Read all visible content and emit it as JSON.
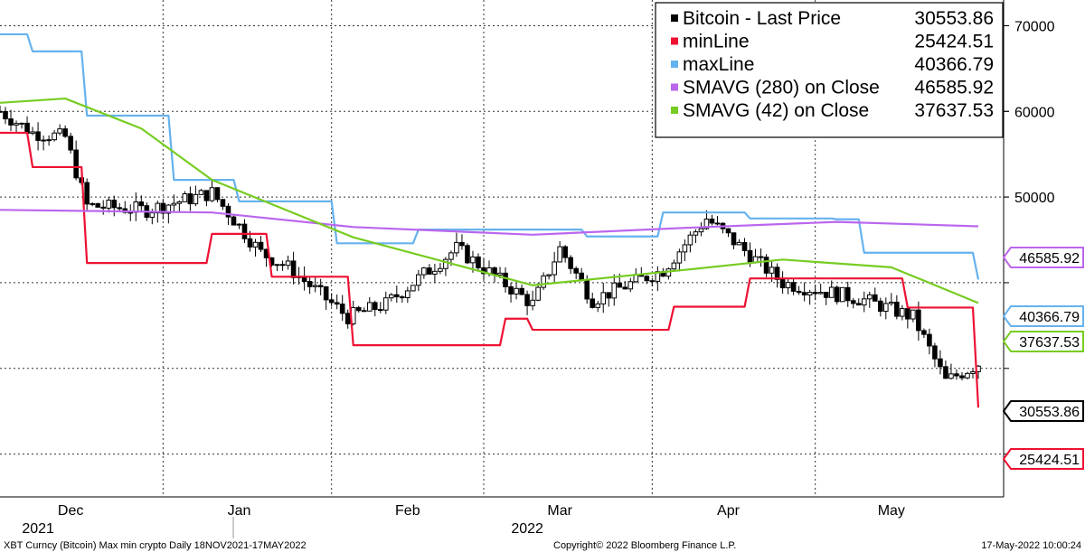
{
  "chart_data": {
    "type": "line",
    "ylim": [
      15000,
      73000
    ],
    "y_ticks": [
      70000,
      60000,
      50000
    ],
    "y_tick_labels": [
      "70000",
      "60000",
      "50000"
    ],
    "grid": true,
    "legend_placement": "top-right",
    "x_months": [
      {
        "label": "Dec",
        "date": "2021-12-01"
      },
      {
        "label": "Jan",
        "date": "2022-01-01"
      },
      {
        "label": "Feb",
        "date": "2022-02-01"
      },
      {
        "label": "Mar",
        "date": "2022-03-01"
      },
      {
        "label": "Apr",
        "date": "2022-04-01"
      },
      {
        "label": "May",
        "date": "2022-05-01"
      }
    ],
    "x_years": [
      {
        "label": "2021",
        "date": "2021-12-01"
      },
      {
        "label": "2022",
        "date": "2022-03-01"
      }
    ],
    "x_range": [
      "2021-11-18",
      "2022-05-17"
    ],
    "series": [
      {
        "name": "Bitcoin - Last Price",
        "color": "#000000",
        "type": "candlestick",
        "last": "30553.86",
        "key_points": [
          {
            "date": "2021-11-18",
            "value": 60000
          },
          {
            "date": "2021-11-24",
            "value": 57500
          },
          {
            "date": "2021-11-30",
            "value": 57000
          },
          {
            "date": "2021-12-04",
            "value": 49000
          },
          {
            "date": "2021-12-15",
            "value": 48500
          },
          {
            "date": "2021-12-27",
            "value": 50500
          },
          {
            "date": "2022-01-05",
            "value": 43500
          },
          {
            "date": "2022-01-10",
            "value": 41800
          },
          {
            "date": "2022-01-21",
            "value": 36000
          },
          {
            "date": "2022-01-28",
            "value": 37500
          },
          {
            "date": "2022-02-10",
            "value": 44000
          },
          {
            "date": "2022-02-24",
            "value": 37500
          },
          {
            "date": "2022-03-01",
            "value": 44000
          },
          {
            "date": "2022-03-07",
            "value": 38000
          },
          {
            "date": "2022-03-20",
            "value": 41500
          },
          {
            "date": "2022-03-28",
            "value": 47500
          },
          {
            "date": "2022-04-11",
            "value": 40000
          },
          {
            "date": "2022-04-26",
            "value": 38000
          },
          {
            "date": "2022-05-05",
            "value": 36000
          },
          {
            "date": "2022-05-11",
            "value": 28500
          },
          {
            "date": "2022-05-17",
            "value": 30553.86
          }
        ]
      },
      {
        "name": "minLine",
        "color": "#ee1133",
        "last": "25424.51",
        "points": [
          {
            "date": "2021-11-18",
            "value": 57500
          },
          {
            "date": "2021-11-24",
            "value": 53500
          },
          {
            "date": "2021-12-04",
            "value": 42300
          },
          {
            "date": "2021-12-27",
            "value": 45700
          },
          {
            "date": "2022-01-07",
            "value": 40700
          },
          {
            "date": "2022-01-22",
            "value": 32700
          },
          {
            "date": "2022-02-19",
            "value": 35800
          },
          {
            "date": "2022-02-24",
            "value": 34500
          },
          {
            "date": "2022-03-22",
            "value": 37200
          },
          {
            "date": "2022-04-05",
            "value": 40500
          },
          {
            "date": "2022-05-04",
            "value": 37100
          },
          {
            "date": "2022-05-17",
            "value": 25424.51
          }
        ]
      },
      {
        "name": "maxLine",
        "color": "#66b2ee",
        "last": "40366.79",
        "points": [
          {
            "date": "2021-11-18",
            "value": 69000
          },
          {
            "date": "2021-11-24",
            "value": 67000
          },
          {
            "date": "2021-12-04",
            "value": 59500
          },
          {
            "date": "2021-12-20",
            "value": 52000
          },
          {
            "date": "2022-01-01",
            "value": 49500
          },
          {
            "date": "2022-01-19",
            "value": 44600
          },
          {
            "date": "2022-02-03",
            "value": 46200
          },
          {
            "date": "2022-03-06",
            "value": 45400
          },
          {
            "date": "2022-03-20",
            "value": 48200
          },
          {
            "date": "2022-04-05",
            "value": 47500
          },
          {
            "date": "2022-04-21",
            "value": 47400
          },
          {
            "date": "2022-04-26",
            "value": 43500
          },
          {
            "date": "2022-05-17",
            "value": 40366.79
          }
        ]
      },
      {
        "name": "SMAVG (280)  on Close",
        "color": "#bb66ee",
        "last": "46585.92",
        "points": [
          {
            "date": "2021-11-18",
            "value": 48500
          },
          {
            "date": "2021-12-27",
            "value": 48200
          },
          {
            "date": "2022-01-22",
            "value": 46500
          },
          {
            "date": "2022-02-24",
            "value": 45600
          },
          {
            "date": "2022-03-24",
            "value": 46400
          },
          {
            "date": "2022-04-21",
            "value": 47100
          },
          {
            "date": "2022-05-17",
            "value": 46585.92
          }
        ]
      },
      {
        "name": "SMAVG (42)  on Close",
        "color": "#77cc22",
        "last": "37637.53",
        "points": [
          {
            "date": "2021-11-18",
            "value": 61000
          },
          {
            "date": "2021-11-30",
            "value": 61500
          },
          {
            "date": "2021-12-14",
            "value": 58000
          },
          {
            "date": "2021-12-27",
            "value": 52000
          },
          {
            "date": "2022-01-22",
            "value": 45300
          },
          {
            "date": "2022-02-24",
            "value": 39700
          },
          {
            "date": "2022-03-24",
            "value": 41500
          },
          {
            "date": "2022-04-11",
            "value": 42700
          },
          {
            "date": "2022-05-01",
            "value": 41800
          },
          {
            "date": "2022-05-17",
            "value": 37637.53
          }
        ]
      }
    ]
  },
  "footer": {
    "left": "XBT Curncy (Bitcoin) Max min crypto  Daily 18NOV2021-17MAY2022",
    "center": "Copyright© 2022 Bloomberg Finance L.P.",
    "right": "17-May-2022 10:00:24"
  }
}
